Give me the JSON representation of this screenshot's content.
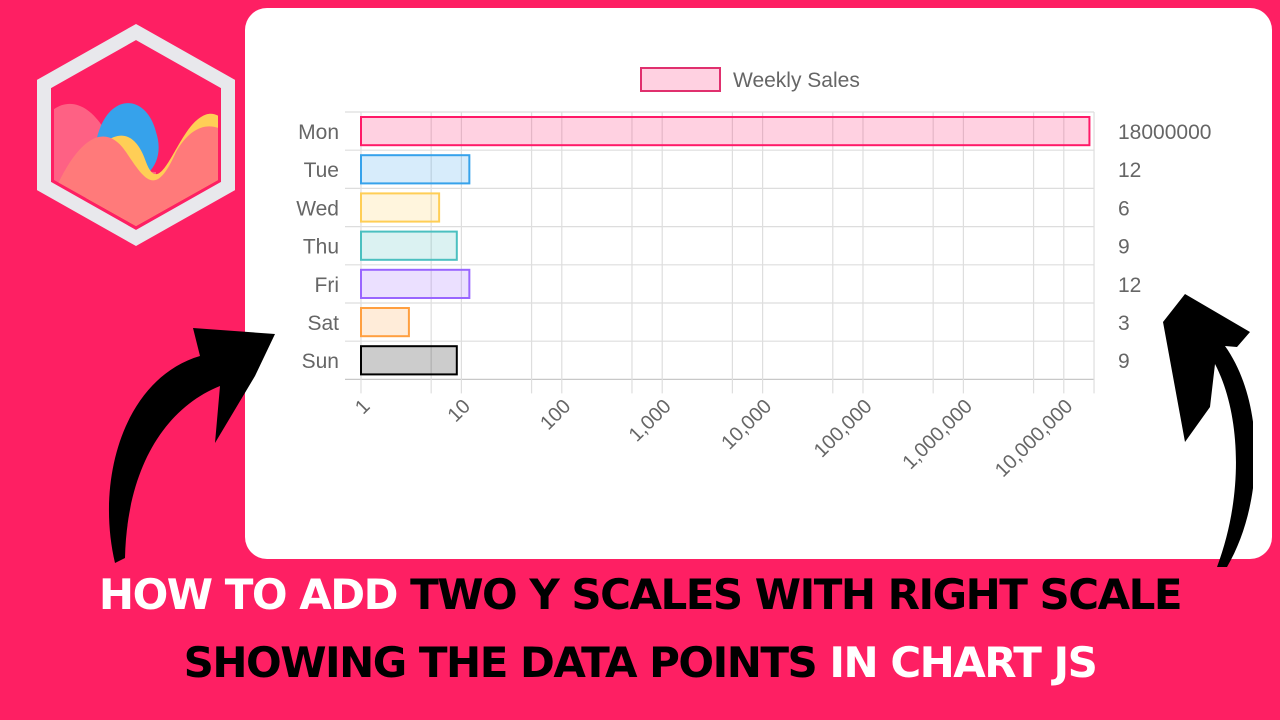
{
  "thumbnail": {
    "background_color": "#fe1f63",
    "logo": "chartjs-logo-icon",
    "title": {
      "line1": [
        {
          "text": "HOW TO ADD ",
          "color": "white"
        },
        {
          "text": "TWO Y SCALES WITH RIGHT SCALE",
          "color": "black"
        }
      ],
      "line2": [
        {
          "text": "SHOWING THE DATA POINTS ",
          "color": "black"
        },
        {
          "text": "IN CHART JS",
          "color": "white"
        }
      ]
    },
    "arrows": [
      "curved-arrow-left-icon",
      "curved-arrow-right-icon"
    ]
  },
  "chart_data": {
    "type": "bar",
    "orientation": "horizontal",
    "title": "",
    "legend": {
      "position": "top",
      "entries": [
        "Weekly Sales"
      ]
    },
    "categories": [
      "Mon",
      "Tue",
      "Wed",
      "Thu",
      "Fri",
      "Sat",
      "Sun"
    ],
    "series": [
      {
        "name": "Weekly Sales",
        "values": [
          18000000,
          12,
          6,
          9,
          12,
          3,
          9
        ],
        "background_colors": [
          "rgba(255,26,104,0.2)",
          "rgba(54,162,235,0.2)",
          "rgba(255,206,86,0.2)",
          "rgba(75,192,192,0.2)",
          "rgba(153,102,255,0.2)",
          "rgba(255,159,64,0.2)",
          "rgba(0,0,0,0.2)"
        ],
        "border_colors": [
          "#ff1a68",
          "#36a2eb",
          "#ffce56",
          "#4bc0c0",
          "#9966ff",
          "#ff9f40",
          "#000000"
        ]
      }
    ],
    "x_axis": {
      "scale": "logarithmic",
      "ticks": [
        "1",
        "10",
        "100",
        "1,000",
        "10,000",
        "100,000",
        "1,000,000",
        "10,000,000"
      ],
      "tick_rotation": -45,
      "range": [
        1,
        20000000
      ]
    },
    "y_axis_left": {
      "labels": [
        "Mon",
        "Tue",
        "Wed",
        "Thu",
        "Fri",
        "Sat",
        "Sun"
      ]
    },
    "y_axis_right": {
      "labels": [
        "18000000",
        "12",
        "6",
        "9",
        "12",
        "3",
        "9"
      ]
    },
    "grid": true,
    "xlabel": "",
    "ylabel": ""
  }
}
